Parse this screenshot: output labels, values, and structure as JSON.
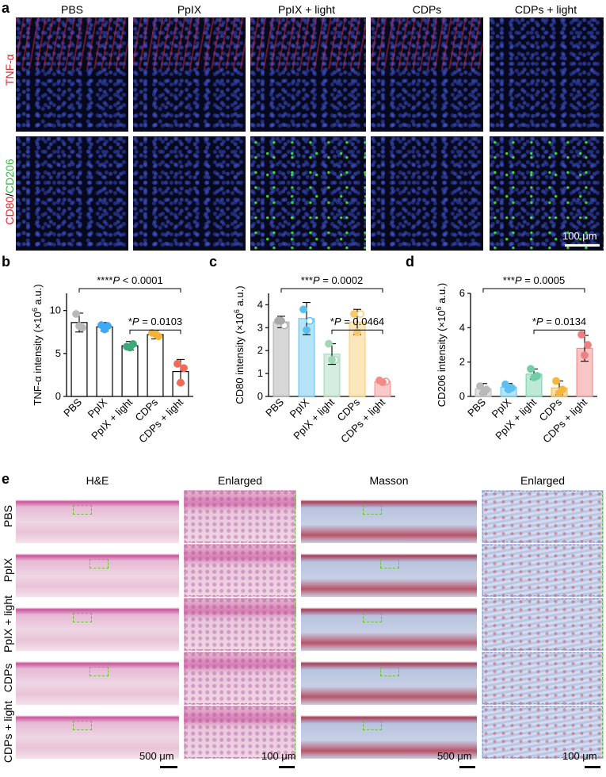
{
  "panel_a": {
    "letter": "a",
    "columns": [
      "PBS",
      "PpIX",
      "PpIX + light",
      "CDPs",
      "CDPs + light"
    ],
    "row1_label": "TNF-α",
    "row2_label_red": "CD80",
    "row2_label_sep": "/",
    "row2_label_green": "CD206",
    "scale_bar": "100 μm",
    "colors": {
      "red": "#e8202a",
      "green": "#3ab54a"
    }
  },
  "panel_b": {
    "letter": "b"
  },
  "panel_c": {
    "letter": "c"
  },
  "panel_d": {
    "letter": "d"
  },
  "panel_e": {
    "letter": "e",
    "headers": [
      "H&E",
      "Enlarged",
      "Masson",
      "Enlarged"
    ],
    "rows": [
      "PBS",
      "PpIX",
      "PpIX + light",
      "CDPs",
      "CDPs + light"
    ],
    "scale_low": "500 μm",
    "scale_high": "100 μm"
  },
  "chart_data": [
    {
      "type": "bar",
      "categories": [
        "PBS",
        "PpIX",
        "PpIX + light",
        "CDPs",
        "CDPs + light"
      ],
      "values": [
        8.6,
        8.1,
        5.9,
        7.2,
        2.9
      ],
      "errors": [
        1.1,
        0.5,
        0.5,
        0.5,
        1.4
      ],
      "points": [
        [
          9.6,
          8.0,
          8.2
        ],
        [
          8.3,
          8.2,
          7.8
        ],
        [
          5.8,
          6.1,
          5.7
        ],
        [
          7.4,
          7.0,
          7.3
        ],
        [
          3.8,
          3.3,
          1.6
        ]
      ],
      "colors": [
        "#b9b9b9",
        "#3fa9f5",
        "#3aaa7a",
        "#f5b335",
        "#ee6a5a"
      ],
      "ylabel": "TNF-α intensity (×10^6 a.u.)",
      "ylabel_parts": [
        "TNF-α intensity (×10",
        "6",
        " a.u.)"
      ],
      "ylim": [
        0,
        12
      ],
      "yticks": [
        0,
        5,
        10
      ],
      "significance": [
        {
          "from": "PBS",
          "to": "CDPs + light",
          "label_stars": "****",
          "label_p": "P",
          "label_rest": " < 0.0001"
        },
        {
          "from": "PpIX + light",
          "to": "CDPs + light",
          "label_stars": "*",
          "label_p": "P",
          "label_rest": " = 0.0103"
        }
      ]
    },
    {
      "type": "bar",
      "categories": [
        "PBS",
        "PpIX",
        "PpIX + light",
        "CDPs",
        "CDPs + light"
      ],
      "values": [
        3.25,
        3.4,
        1.85,
        3.25,
        0.65
      ],
      "errors": [
        0.25,
        0.7,
        0.45,
        0.55,
        0.05
      ],
      "points": [
        [
          3.3,
          3.1,
          3.3
        ],
        [
          3.8,
          3.3,
          2.9
        ],
        [
          2.3,
          1.6,
          1.6
        ],
        [
          3.6,
          3.6,
          2.8
        ],
        [
          0.7,
          0.65,
          0.62
        ]
      ],
      "colors": [
        "#a9a9a9",
        "#5bc0f0",
        "#9fd8b6",
        "#f9c86a",
        "#f48a86"
      ],
      "ylabel": "CD80 intensity (×10^6 a.u.)",
      "ylabel_parts": [
        "CD80 intensity (×10",
        "6",
        " a.u.)"
      ],
      "ylim": [
        0,
        4.5
      ],
      "yticks": [
        0,
        1,
        2,
        3,
        4
      ],
      "significance": [
        {
          "from": "PBS",
          "to": "CDPs + light",
          "label_stars": "***",
          "label_p": "P",
          "label_rest": " = 0.0002"
        },
        {
          "from": "PpIX + light",
          "to": "CDPs + light",
          "label_stars": "*",
          "label_p": "P",
          "label_rest": " = 0.0464"
        }
      ]
    },
    {
      "type": "bar",
      "categories": [
        "PBS",
        "PpIX",
        "PpIX + light",
        "CDPs",
        "CDPs + light"
      ],
      "values": [
        0.45,
        0.55,
        1.3,
        0.5,
        2.8
      ],
      "errors": [
        0.3,
        0.2,
        0.3,
        0.4,
        0.75
      ],
      "points": [
        [
          0.6,
          0.4,
          0.2
        ],
        [
          0.7,
          0.5,
          0.4
        ],
        [
          1.6,
          1.2,
          1.1
        ],
        [
          0.9,
          0.4,
          0.2
        ],
        [
          3.6,
          3.0,
          2.4
        ]
      ],
      "colors": [
        "#b9b9b9",
        "#5cc0f0",
        "#70cfa6",
        "#f5b53e",
        "#f08080"
      ],
      "ylabel": "CD206 intensity (×10^6 a.u.)",
      "ylabel_parts": [
        "CD206 intensity (×10",
        "6",
        " a.u.)"
      ],
      "ylim": [
        0,
        6
      ],
      "yticks": [
        0,
        2,
        4,
        6
      ],
      "significance": [
        {
          "from": "PBS",
          "to": "CDPs + light",
          "label_stars": "***",
          "label_p": "P",
          "label_rest": " = 0.0005"
        },
        {
          "from": "PpIX + light",
          "to": "CDPs + light",
          "label_stars": "*",
          "label_p": "P",
          "label_rest": " = 0.0134"
        }
      ]
    }
  ]
}
